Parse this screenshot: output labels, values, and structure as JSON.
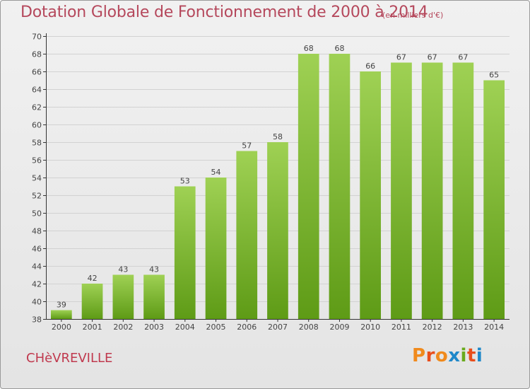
{
  "header": {
    "title": "Dotation Globale de Fonctionnement de 2000 à 2014",
    "unit": "(en milliers d'€)"
  },
  "footer": {
    "commune": "CHèVREVILLE",
    "logo_text": "Proxiti"
  },
  "colors": {
    "title": "#b5485c",
    "bar_light": "#9fd154",
    "bar_dark": "#5e9b16",
    "grid": "#d2d2d2",
    "axis": "#333333",
    "logo_letters": [
      "#f08a1c",
      "#e94e1b",
      "#f08a1c",
      "#1f88c9",
      "#6aaa1d",
      "#e94e1b",
      "#1f88c9"
    ]
  },
  "chart_data": {
    "type": "bar",
    "title": "Dotation Globale de Fonctionnement de 2000 à 2014",
    "subtitle": "(en milliers d'€)",
    "xlabel": "",
    "ylabel": "",
    "categories": [
      "2000",
      "2001",
      "2002",
      "2003",
      "2004",
      "2005",
      "2006",
      "2007",
      "2008",
      "2009",
      "2010",
      "2011",
      "2012",
      "2013",
      "2014"
    ],
    "values": [
      39,
      42,
      43,
      43,
      53,
      54,
      57,
      58,
      68,
      68,
      66,
      67,
      67,
      67,
      65
    ],
    "ylim": [
      38,
      70
    ],
    "yticks": [
      38,
      40,
      42,
      44,
      46,
      48,
      50,
      52,
      54,
      56,
      58,
      60,
      62,
      64,
      66,
      68,
      70
    ],
    "grid": true,
    "data_labels": true
  }
}
